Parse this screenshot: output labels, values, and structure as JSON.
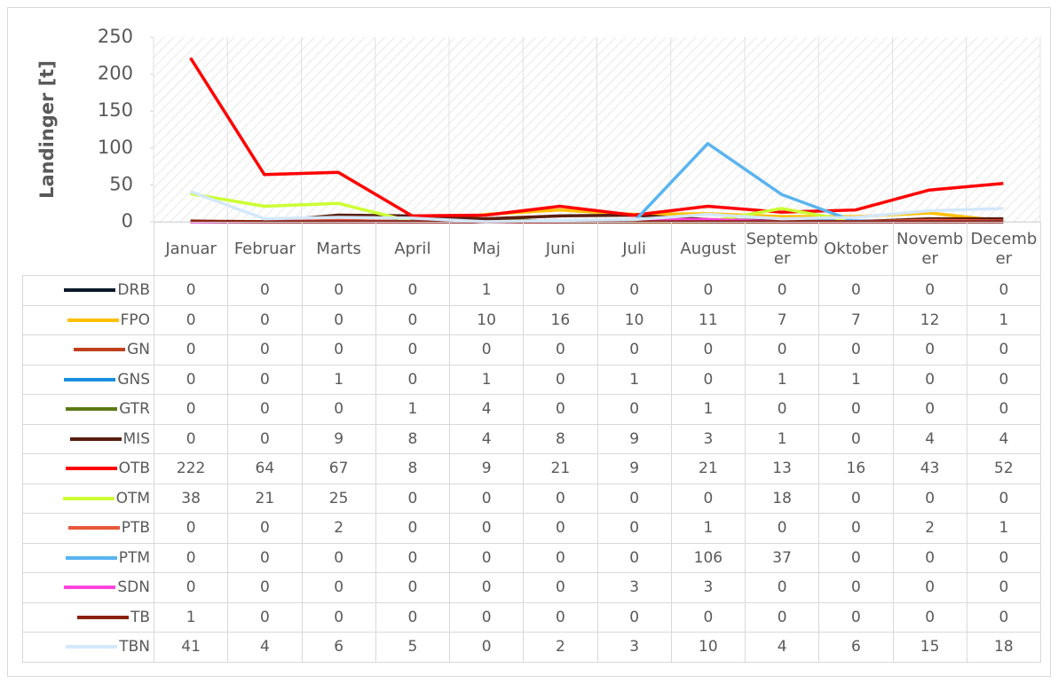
{
  "chart_data": {
    "type": "line",
    "y_label": "Landinger [t]",
    "categories": [
      "Januar",
      "Februar",
      "Marts",
      "April",
      "Maj",
      "Juni",
      "Juli",
      "August",
      "September",
      "Oktober",
      "November",
      "December"
    ],
    "ylim": [
      0,
      250
    ],
    "yticks": [
      0,
      50,
      100,
      150,
      200,
      250
    ],
    "series": [
      {
        "name": "DRB",
        "color": "#0b1a2b",
        "values": [
          0,
          0,
          0,
          0,
          1,
          0,
          0,
          0,
          0,
          0,
          0,
          0
        ]
      },
      {
        "name": "FPO",
        "color": "#ffc000",
        "values": [
          0,
          0,
          0,
          0,
          10,
          16,
          10,
          11,
          7,
          7,
          12,
          1
        ]
      },
      {
        "name": "GN",
        "color": "#c0401e",
        "values": [
          0,
          0,
          0,
          0,
          0,
          0,
          0,
          0,
          0,
          0,
          0,
          0
        ]
      },
      {
        "name": "GNS",
        "color": "#1a8ee0",
        "values": [
          0,
          0,
          1,
          0,
          1,
          0,
          1,
          0,
          1,
          1,
          0,
          0
        ]
      },
      {
        "name": "GTR",
        "color": "#5b7a12",
        "values": [
          0,
          0,
          0,
          1,
          4,
          0,
          0,
          1,
          0,
          0,
          0,
          0
        ]
      },
      {
        "name": "MIS",
        "color": "#5a1e0e",
        "values": [
          0,
          0,
          9,
          8,
          4,
          8,
          9,
          3,
          1,
          0,
          4,
          4
        ]
      },
      {
        "name": "OTB",
        "color": "#ff0000",
        "values": [
          222,
          64,
          67,
          8,
          9,
          21,
          9,
          21,
          13,
          16,
          43,
          52
        ]
      },
      {
        "name": "OTM",
        "color": "#ccff33",
        "values": [
          38,
          21,
          25,
          0,
          0,
          0,
          0,
          0,
          18,
          0,
          0,
          0
        ]
      },
      {
        "name": "PTB",
        "color": "#e8593a",
        "values": [
          0,
          0,
          2,
          0,
          0,
          0,
          0,
          1,
          0,
          0,
          2,
          1
        ]
      },
      {
        "name": "PTM",
        "color": "#5ab4f0",
        "values": [
          0,
          0,
          0,
          0,
          0,
          0,
          0,
          106,
          37,
          0,
          0,
          0
        ]
      },
      {
        "name": "SDN",
        "color": "#ff44dd",
        "values": [
          0,
          0,
          0,
          0,
          0,
          0,
          3,
          3,
          0,
          0,
          0,
          0
        ]
      },
      {
        "name": "TB",
        "color": "#8b2210",
        "values": [
          1,
          0,
          0,
          0,
          0,
          0,
          0,
          0,
          0,
          0,
          0,
          0
        ]
      },
      {
        "name": "TBN",
        "color": "#d4e8fb",
        "values": [
          41,
          4,
          6,
          5,
          0,
          2,
          3,
          10,
          4,
          6,
          15,
          18
        ]
      }
    ]
  }
}
